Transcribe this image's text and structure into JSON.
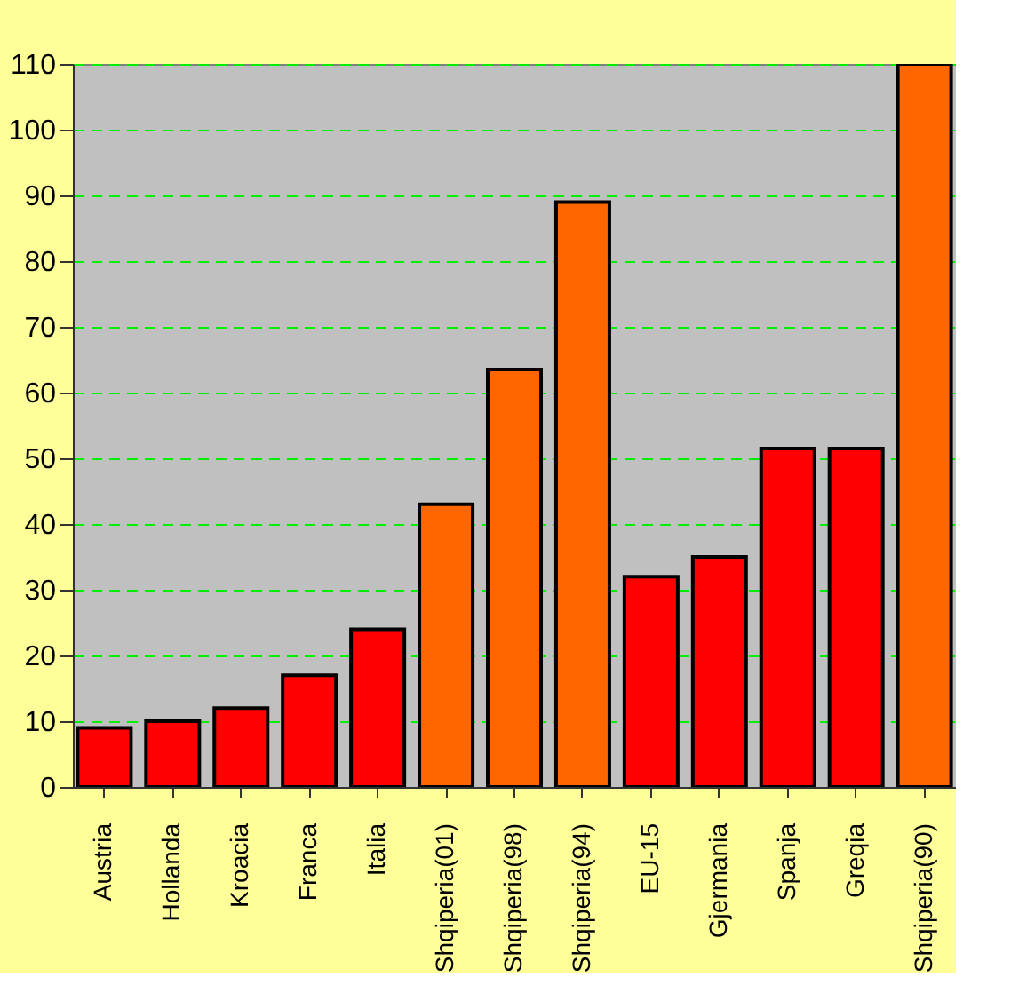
{
  "chart_data": {
    "type": "bar",
    "categories": [
      "Austria",
      "Hollanda",
      "Kroacia",
      "Franca",
      "Italia",
      "Shqiperia(01)",
      "Shqiperia(98)",
      "Shqiperia(94)",
      "EU-15",
      "Gjermania",
      "Spanja",
      "Greqia",
      "Shqiperia(90)"
    ],
    "values": [
      9,
      10,
      12,
      17,
      24,
      43,
      63.5,
      89,
      32,
      35,
      51.5,
      51.5,
      110
    ],
    "colors": [
      "#ff0000",
      "#ff0000",
      "#ff0000",
      "#ff0000",
      "#ff0000",
      "#ff6600",
      "#ff6600",
      "#ff6600",
      "#ff0000",
      "#ff0000",
      "#ff0000",
      "#ff0000",
      "#ff6600"
    ],
    "ylim": [
      0,
      110
    ],
    "yticks": [
      0,
      10,
      20,
      30,
      40,
      50,
      60,
      70,
      80,
      90,
      100,
      110
    ],
    "grid": "y"
  }
}
